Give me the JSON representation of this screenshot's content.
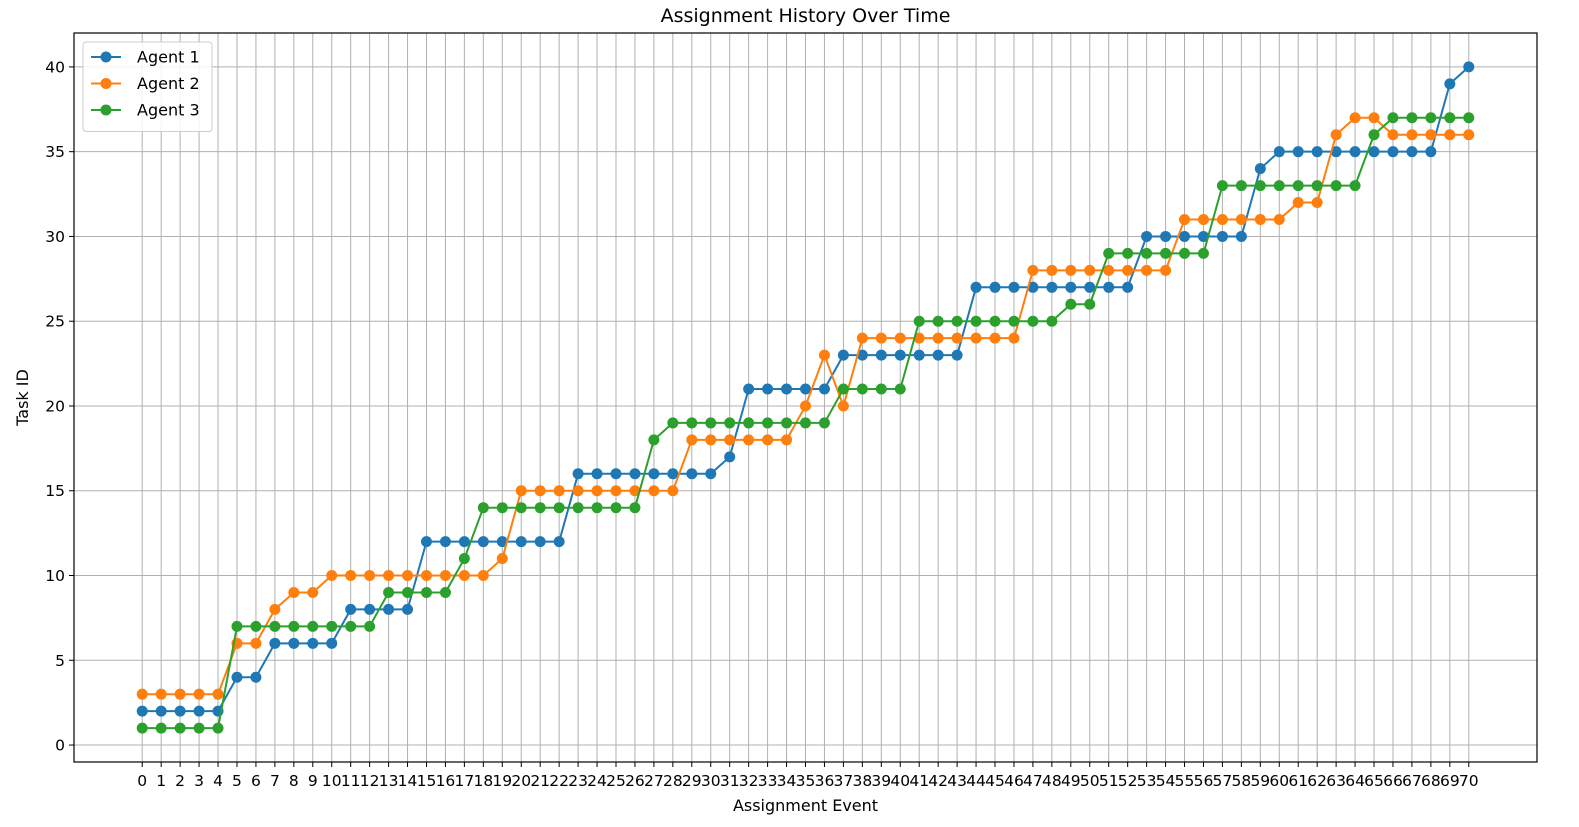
{
  "chart_data": {
    "type": "line",
    "title": "Assignment History Over Time",
    "xlabel": "Assignment Event",
    "ylabel": "Task ID",
    "xlim": [
      -3.6,
      73.6
    ],
    "ylim": [
      -1,
      42
    ],
    "yticks": [
      0,
      5,
      10,
      15,
      20,
      25,
      30,
      35,
      40
    ],
    "x": [
      0,
      1,
      2,
      3,
      4,
      5,
      6,
      7,
      8,
      9,
      10,
      11,
      12,
      13,
      14,
      15,
      16,
      17,
      18,
      19,
      20,
      21,
      22,
      23,
      24,
      25,
      26,
      27,
      28,
      29,
      30,
      31,
      32,
      33,
      34,
      35,
      36,
      37,
      38,
      39,
      40,
      41,
      42,
      43,
      44,
      45,
      46,
      47,
      48,
      49,
      50,
      51,
      52,
      53,
      54,
      55,
      56,
      57,
      58,
      59,
      60,
      61,
      62,
      63,
      64,
      65,
      66,
      67,
      68,
      69,
      70
    ],
    "grid": true,
    "legend_position": "upper-left",
    "series": [
      {
        "name": "Agent 1",
        "color": "#1f77b4",
        "values": [
          2,
          2,
          2,
          2,
          2,
          4,
          4,
          6,
          6,
          6,
          6,
          8,
          8,
          8,
          8,
          12,
          12,
          12,
          12,
          12,
          12,
          12,
          12,
          16,
          16,
          16,
          16,
          16,
          16,
          16,
          16,
          17,
          21,
          21,
          21,
          21,
          21,
          23,
          23,
          23,
          23,
          23,
          23,
          23,
          27,
          27,
          27,
          27,
          27,
          27,
          27,
          27,
          27,
          30,
          30,
          30,
          30,
          30,
          30,
          34,
          35,
          35,
          35,
          35,
          35,
          35,
          35,
          35,
          35,
          39,
          40
        ]
      },
      {
        "name": "Agent 2",
        "color": "#ff7f0e",
        "values": [
          3,
          3,
          3,
          3,
          3,
          6,
          6,
          8,
          9,
          9,
          10,
          10,
          10,
          10,
          10,
          10,
          10,
          10,
          10,
          11,
          15,
          15,
          15,
          15,
          15,
          15,
          15,
          15,
          15,
          18,
          18,
          18,
          18,
          18,
          18,
          20,
          23,
          20,
          24,
          24,
          24,
          24,
          24,
          24,
          24,
          24,
          24,
          28,
          28,
          28,
          28,
          28,
          28,
          28,
          28,
          31,
          31,
          31,
          31,
          31,
          31,
          32,
          32,
          36,
          37,
          37,
          36,
          36,
          36,
          36,
          36
        ]
      },
      {
        "name": "Agent 3",
        "color": "#2ca02c",
        "values": [
          1,
          1,
          1,
          1,
          1,
          7,
          7,
          7,
          7,
          7,
          7,
          7,
          7,
          9,
          9,
          9,
          9,
          11,
          14,
          14,
          14,
          14,
          14,
          14,
          14,
          14,
          14,
          18,
          19,
          19,
          19,
          19,
          19,
          19,
          19,
          19,
          19,
          21,
          21,
          21,
          21,
          25,
          25,
          25,
          25,
          25,
          25,
          25,
          25,
          26,
          26,
          29,
          29,
          29,
          29,
          29,
          29,
          33,
          33,
          33,
          33,
          33,
          33,
          33,
          33,
          36,
          37,
          37,
          37,
          37,
          37
        ]
      }
    ]
  }
}
